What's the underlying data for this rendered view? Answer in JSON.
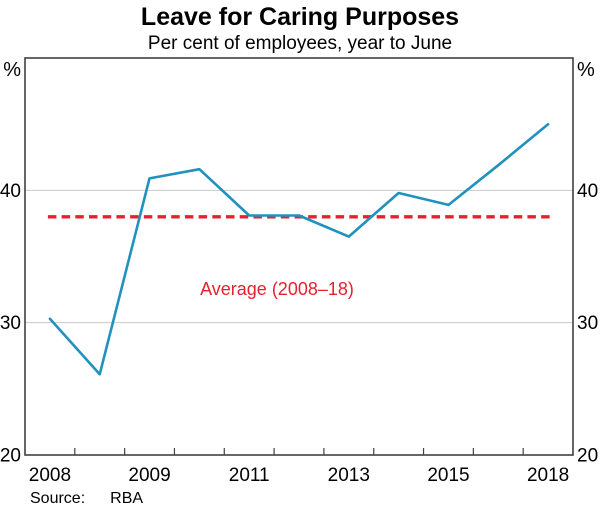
{
  "header": {
    "title": "Leave for Caring Purposes",
    "subtitle": "Per cent of employees, year to June"
  },
  "footer": {
    "source_label": "Source:",
    "source_value": "RBA"
  },
  "colors": {
    "line": "#2191bd",
    "average": "#e7202f",
    "grid": "#c9c9c9",
    "frame": "#414141",
    "text": "#000000",
    "background": "#ffffff"
  },
  "chart_data": {
    "type": "line",
    "title": "Leave for Caring Purposes",
    "subtitle": "Per cent of employees, year to June",
    "unit_label": "%",
    "n_points": 11,
    "x_tick_labels": [
      "2008",
      "2009",
      "2011",
      "2013",
      "2015",
      "2018"
    ],
    "x_label_point_indices": [
      1,
      3,
      5,
      7,
      9,
      11
    ],
    "series": [
      {
        "name": "Leave for caring purposes",
        "values": [
          30.3,
          26.1,
          40.9,
          41.6,
          38.1,
          38.1,
          36.5,
          39.8,
          38.9,
          41.9,
          45.0
        ]
      }
    ],
    "ylim": [
      20,
      50
    ],
    "yticks": [
      20,
      30,
      40
    ],
    "grid": "horizontal",
    "axis_labels_both_sides": true,
    "legend_position": "none",
    "average_line": {
      "value": 38.0,
      "label": "Average (2008–18)",
      "style": "dashed"
    }
  }
}
